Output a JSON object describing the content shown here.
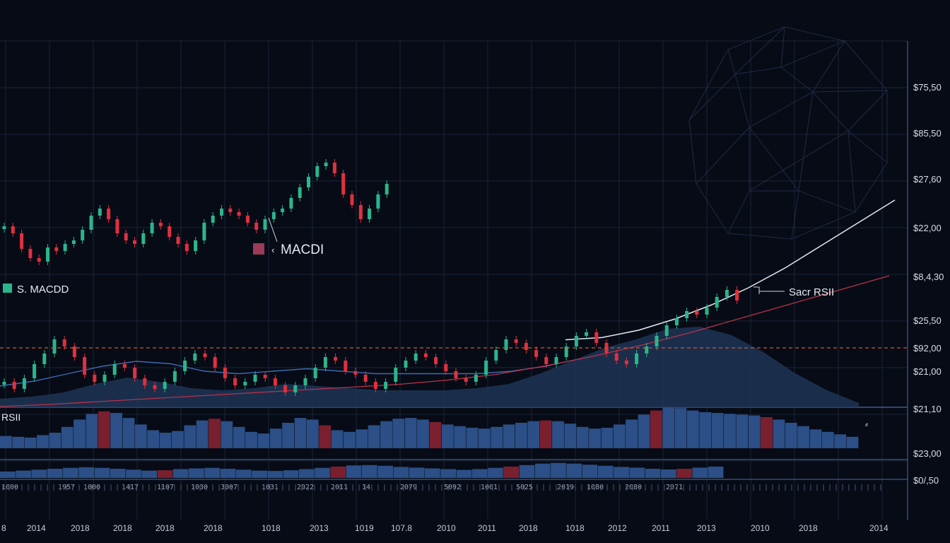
{
  "colors": {
    "background": "#070b16",
    "grid": "#1a2336",
    "up": "#2bb58a",
    "down": "#e0303e",
    "area_fill": "#1d3556",
    "ma_blue": "#3d6ab0",
    "ma_red": "#b8324a",
    "trend_white": "#e6e9ef",
    "dashed_line": "#d2582a",
    "hist_blue": "#2b4f86",
    "hist_red": "#7a1f2e"
  },
  "legend": {
    "macd_label": "MACDI",
    "macd_prefix": "‹",
    "s_macd_label": "S. MACDD",
    "rsi_callout": "Sacr RSII",
    "rsi_panel_label": "RSII",
    "side_mark": "⸗"
  },
  "chart_data": {
    "type": "candlestick",
    "y_axis_labels": [
      "$75,50",
      "$85,50",
      "$27,60",
      "$22,00",
      "$8,4,30",
      "$25,50",
      "$92,00",
      "$21,00",
      "$21,10",
      "$23,00",
      "$0/,50"
    ],
    "x_axis_labels": [
      "8",
      "2014",
      "2018",
      "2018",
      "2018",
      "2018",
      "1018",
      "2013",
      "1019",
      "107.8",
      "2010",
      "2011",
      "2018",
      "1018",
      "2012",
      "2011",
      "2013",
      "2010",
      "2018",
      "2014"
    ],
    "mini_row_labels": [
      "1000",
      "1957",
      "1000",
      "1417",
      "1107",
      "1030",
      "3007",
      "1031",
      "2022",
      "2011",
      "14",
      "2079",
      "5092",
      "1001",
      "5025",
      "2019",
      "1080",
      "2080",
      "2071"
    ],
    "candles_upper": [
      24.0,
      23.0,
      20.8,
      19.5,
      19.0,
      21.0,
      20.5,
      21.5,
      22.0,
      23.5,
      25.5,
      26.5,
      25.0,
      23.0,
      22.0,
      21.5,
      23.0,
      24.5,
      24.0,
      22.5,
      21.5,
      20.5,
      22.0,
      24.5,
      25.5,
      26.5,
      26.0,
      25.5,
      24.5,
      23.5,
      25.0,
      26.0,
      26.5,
      28.0,
      29.5,
      31.0,
      32.5,
      33.0,
      31.5,
      28.5,
      27.0,
      25.0,
      26.5,
      28.5,
      30.0
    ],
    "candles_lower": [
      22.0,
      21.0,
      22.5,
      24.5,
      26.0,
      28.0,
      27.0,
      25.5,
      23.0,
      22.0,
      23.0,
      24.5,
      24.0,
      22.5,
      21.5,
      21.0,
      22.0,
      23.5,
      25.0,
      26.0,
      25.5,
      24.0,
      22.5,
      21.5,
      22.0,
      23.0,
      22.5,
      21.5,
      20.5,
      21.5,
      22.5,
      24.0,
      25.5,
      25.0,
      23.5,
      23.0,
      22.0,
      21.0,
      22.0,
      24.0,
      25.0,
      26.0,
      25.5,
      24.5,
      23.5,
      22.5,
      22.0,
      23.0,
      25.0,
      26.5,
      28.0,
      27.5,
      26.5,
      25.5,
      24.5,
      25.5,
      27.0,
      28.5,
      29.0,
      27.5,
      26.0,
      25.0,
      24.5,
      26.0,
      27.0,
      28.5,
      30.0,
      31.0,
      32.0,
      31.5,
      32.5,
      34.0,
      35.0,
      33.5
    ],
    "area_profile": [
      2.0,
      2.5,
      3.5,
      5.5,
      7.0,
      6.0,
      4.5,
      4.0,
      4.5,
      5.5,
      5.0,
      4.5,
      4.0,
      4.0,
      4.0,
      4.5,
      5.5,
      8.0,
      11.0,
      14.0,
      16.0,
      18.5,
      19.0,
      17.0,
      13.0,
      8.0,
      4.0,
      1.0
    ],
    "ma_blue": [
      2.0,
      3.0,
      4.5,
      6.0,
      7.0,
      6.5,
      5.0,
      4.5,
      5.0,
      5.5,
      5.0,
      4.5,
      4.5,
      4.5,
      4.5,
      5.0,
      6.0,
      7.5
    ],
    "ma_red": [
      0.5,
      0.8,
      1.2,
      1.6,
      2.0,
      2.4,
      2.8,
      3.2,
      3.6,
      4.2,
      5.0,
      6.2,
      7.6,
      9.2,
      11.0,
      13.0,
      15.0,
      17.0,
      19.0
    ],
    "trend_white": [
      6.8,
      7.2,
      8.5,
      10.5,
      13.0,
      16.0,
      19.5,
      23.5,
      27.5,
      31.5
    ],
    "dashed_level": 92.0,
    "rsi_histogram": [
      0.3,
      0.28,
      0.26,
      0.32,
      0.38,
      0.52,
      0.7,
      0.84,
      0.9,
      0.86,
      0.74,
      0.58,
      0.44,
      0.38,
      0.42,
      0.56,
      0.68,
      0.72,
      0.66,
      0.52,
      0.4,
      0.36,
      0.48,
      0.62,
      0.74,
      0.7,
      0.56,
      0.44,
      0.4,
      0.46,
      0.56,
      0.66,
      0.72,
      0.74,
      0.7,
      0.64,
      0.58,
      0.54,
      0.5,
      0.48,
      0.52,
      0.58,
      0.62,
      0.66,
      0.68,
      0.66,
      0.6,
      0.52,
      0.48,
      0.5,
      0.58,
      0.7,
      0.82,
      0.92,
      1.0,
      0.98,
      0.92,
      0.88,
      0.86,
      0.84,
      0.82,
      0.8,
      0.76,
      0.7,
      0.62,
      0.54,
      0.46,
      0.4,
      0.34,
      0.28
    ],
    "volume_histogram": [
      0.35,
      0.4,
      0.45,
      0.5,
      0.55,
      0.58,
      0.55,
      0.5,
      0.45,
      0.4,
      0.42,
      0.48,
      0.52,
      0.55,
      0.5,
      0.45,
      0.4,
      0.38,
      0.42,
      0.48,
      0.55,
      0.62,
      0.68,
      0.7,
      0.66,
      0.6,
      0.56,
      0.52,
      0.48,
      0.44,
      0.48,
      0.55,
      0.62,
      0.7,
      0.78,
      0.82,
      0.78,
      0.72,
      0.66,
      0.6,
      0.56,
      0.5,
      0.46,
      0.5,
      0.56,
      0.62
    ]
  }
}
